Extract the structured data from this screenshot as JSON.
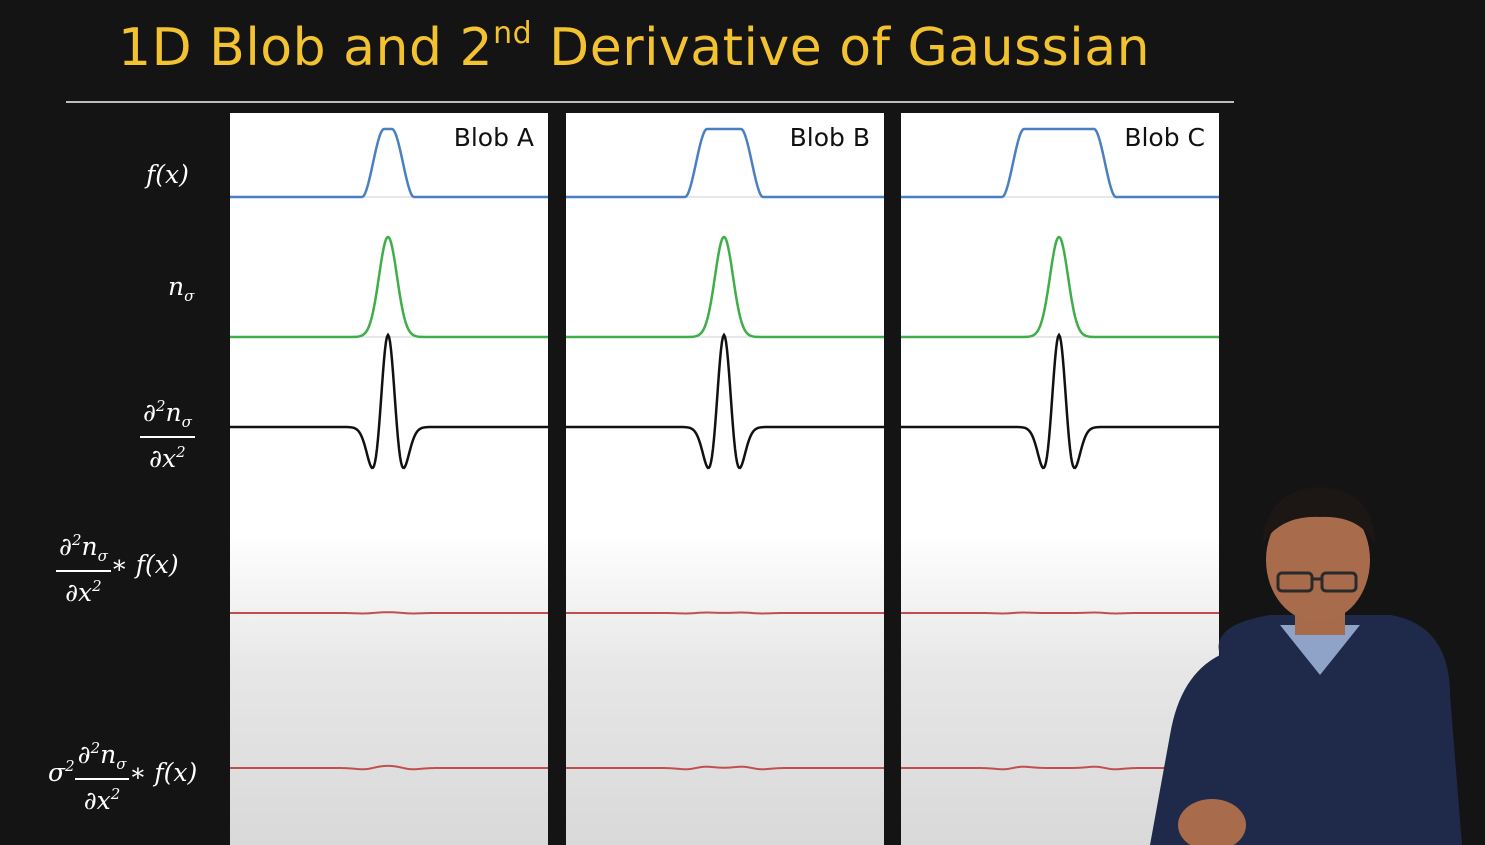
{
  "title": {
    "main": "1D Blob and 2",
    "sup": "nd",
    "rest": " Derivative of Gaussian"
  },
  "row_labels": [
    {
      "id": "f",
      "text": "f(x)"
    },
    {
      "id": "n",
      "text": "nσ",
      "base": "n",
      "sub": "σ"
    },
    {
      "id": "d2n",
      "num": "∂2nσ",
      "den": "∂x2"
    },
    {
      "id": "conv",
      "num": "∂2nσ",
      "den": "∂x2",
      "tail": "∗ f(x)"
    },
    {
      "id": "norm",
      "prefix": "σ2",
      "num": "∂2nσ",
      "den": "∂x2",
      "tail": "∗ f(x)"
    }
  ],
  "panels": [
    {
      "label": "Blob A"
    },
    {
      "label": "Blob B"
    },
    {
      "label": "Blob C"
    }
  ],
  "colors": {
    "title": "#f2c230",
    "background": "#141414",
    "f_curve": "#4a7fc1",
    "gaussian_curve": "#3fae4a",
    "second_derivative_curve": "#111111",
    "convolution_curve": "#c0504d"
  },
  "presenter": "presenter-figure"
}
